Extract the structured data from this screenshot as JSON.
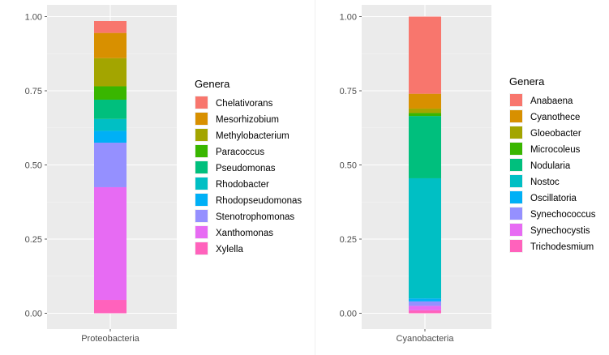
{
  "chart_data": [
    {
      "type": "bar",
      "stacked": true,
      "categories": [
        "Proteobacteria"
      ],
      "ylim": [
        0,
        1.0
      ],
      "yticks": [
        "0.00",
        "0.25",
        "0.50",
        "0.75",
        "1.00"
      ],
      "grid": true,
      "legend_title": "Genera",
      "legend_position": "right",
      "series": [
        {
          "name": "Chelativorans",
          "color": "#F8766D",
          "values": [
            0.04
          ]
        },
        {
          "name": "Mesorhizobium",
          "color": "#D89000",
          "values": [
            0.085
          ]
        },
        {
          "name": "Methylobacterium",
          "color": "#A3A500",
          "values": [
            0.095
          ]
        },
        {
          "name": "Paracoccus",
          "color": "#39B600",
          "values": [
            0.045
          ]
        },
        {
          "name": "Pseudomonas",
          "color": "#00BF7D",
          "values": [
            0.065
          ]
        },
        {
          "name": "Rhodobacter",
          "color": "#00BFC4",
          "values": [
            0.04
          ]
        },
        {
          "name": "Rhodopseudomonas",
          "color": "#00B0F6",
          "values": [
            0.04
          ]
        },
        {
          "name": "Stenotrophomonas",
          "color": "#9590FF",
          "values": [
            0.15
          ]
        },
        {
          "name": "Xanthomonas",
          "color": "#E76BF3",
          "values": [
            0.38
          ]
        },
        {
          "name": "Xylella",
          "color": "#FF62BC",
          "values": [
            0.045
          ]
        }
      ]
    },
    {
      "type": "bar",
      "stacked": true,
      "categories": [
        "Cyanobacteria"
      ],
      "ylim": [
        0,
        1.0
      ],
      "yticks": [
        "0.00",
        "0.25",
        "0.50",
        "0.75",
        "1.00"
      ],
      "grid": true,
      "legend_title": "Genera",
      "legend_position": "right",
      "series": [
        {
          "name": "Anabaena",
          "color": "#F8766D",
          "values": [
            0.26
          ]
        },
        {
          "name": "Cyanothece",
          "color": "#D89000",
          "values": [
            0.05
          ]
        },
        {
          "name": "Gloeobacter",
          "color": "#A3A500",
          "values": [
            0.015
          ]
        },
        {
          "name": "Microcoleus",
          "color": "#39B600",
          "values": [
            0.01
          ]
        },
        {
          "name": "Nodularia",
          "color": "#00BF7D",
          "values": [
            0.21
          ]
        },
        {
          "name": "Nostoc",
          "color": "#00BFC4",
          "values": [
            0.405
          ]
        },
        {
          "name": "Oscillatoria",
          "color": "#00B0F6",
          "values": [
            0.01
          ]
        },
        {
          "name": "Synechococcus",
          "color": "#9590FF",
          "values": [
            0.015
          ]
        },
        {
          "name": "Synechocystis",
          "color": "#E76BF3",
          "values": [
            0.015
          ]
        },
        {
          "name": "Trichodesmium",
          "color": "#FF62BC",
          "values": [
            0.01
          ]
        }
      ]
    }
  ]
}
